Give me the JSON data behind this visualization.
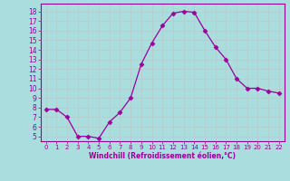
{
  "x": [
    0,
    1,
    2,
    3,
    4,
    5,
    6,
    7,
    8,
    9,
    10,
    11,
    12,
    13,
    14,
    15,
    16,
    17,
    18,
    19,
    20,
    21,
    22
  ],
  "y": [
    7.8,
    7.8,
    7.0,
    5.0,
    5.0,
    4.8,
    6.5,
    7.5,
    9.0,
    12.5,
    14.7,
    16.5,
    17.8,
    18.0,
    17.9,
    16.0,
    14.3,
    13.0,
    11.0,
    10.0,
    10.0,
    9.7,
    9.5
  ],
  "line_color": "#990099",
  "marker": "D",
  "marker_size": 2.5,
  "bg_color": "#aadddd",
  "grid_color": "#bbcccc",
  "xlabel": "Windchill (Refroidissement éolien,°C)",
  "xlabel_color": "#990099",
  "tick_color": "#990099",
  "axis_color": "#990099",
  "ylim": [
    4.5,
    18.8
  ],
  "xlim": [
    -0.5,
    22.5
  ],
  "yticks": [
    5,
    6,
    7,
    8,
    9,
    10,
    11,
    12,
    13,
    14,
    15,
    16,
    17,
    18
  ],
  "xticks": [
    0,
    1,
    2,
    3,
    4,
    5,
    6,
    7,
    8,
    9,
    10,
    11,
    12,
    13,
    14,
    15,
    16,
    17,
    18,
    19,
    20,
    21,
    22
  ]
}
